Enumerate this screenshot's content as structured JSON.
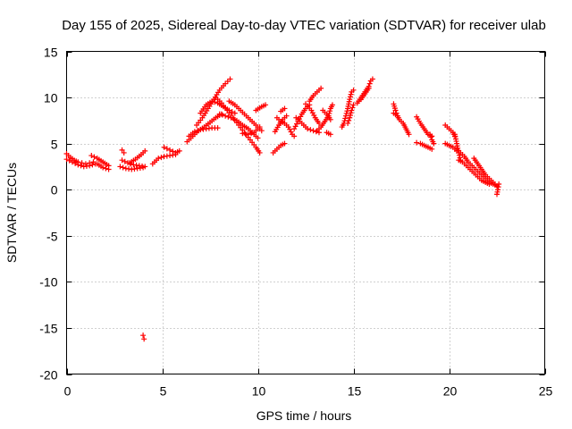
{
  "chart_data": {
    "type": "scatter",
    "title": "Day 155 of 2025, Sidereal Day-to-day VTEC variation (SDTVAR) for receiver ulab",
    "xlabel": "GPS time / hours",
    "ylabel": "SDTVAR / TECUs",
    "xlim": [
      0,
      25
    ],
    "ylim": [
      -20,
      15
    ],
    "xticks": [
      0,
      5,
      10,
      15,
      20,
      25
    ],
    "yticks": [
      -20,
      -15,
      -10,
      -5,
      0,
      5,
      10,
      15
    ],
    "xtick_labels": [
      "0",
      "5",
      "10",
      "15",
      "20",
      "25"
    ],
    "ytick_labels": [
      "-20",
      "-15",
      "-10",
      "-5",
      "0",
      "5",
      "10",
      "15"
    ],
    "grid": true,
    "marker": "+",
    "series": [
      {
        "name": "SDTVAR",
        "color": "#ff0000",
        "segments": [
          [
            [
              0.0,
              3.9
            ],
            [
              0.2,
              3.5
            ],
            [
              0.4,
              3.2
            ],
            [
              0.6,
              3.0
            ],
            [
              0.8,
              2.9
            ],
            [
              1.0,
              2.8
            ],
            [
              1.2,
              2.9
            ],
            [
              1.4,
              3.0
            ]
          ],
          [
            [
              0.0,
              3.3
            ],
            [
              0.3,
              3.0
            ],
            [
              0.6,
              2.7
            ],
            [
              0.9,
              2.5
            ],
            [
              1.2,
              2.6
            ],
            [
              1.5,
              2.8
            ]
          ],
          [
            [
              1.3,
              3.7
            ],
            [
              1.6,
              3.4
            ],
            [
              1.9,
              3.0
            ],
            [
              2.2,
              2.6
            ]
          ],
          [
            [
              1.6,
              2.8
            ],
            [
              1.9,
              2.4
            ],
            [
              2.2,
              2.2
            ]
          ],
          [
            [
              2.8,
              2.5
            ],
            [
              3.1,
              2.3
            ],
            [
              3.4,
              2.2
            ],
            [
              3.7,
              2.3
            ],
            [
              4.0,
              2.4
            ]
          ],
          [
            [
              2.9,
              3.2
            ],
            [
              3.2,
              2.9
            ],
            [
              3.5,
              2.7
            ],
            [
              3.8,
              2.6
            ],
            [
              4.1,
              2.5
            ]
          ],
          [
            [
              3.3,
              2.9
            ],
            [
              3.6,
              3.3
            ],
            [
              3.9,
              3.8
            ],
            [
              4.1,
              4.2
            ]
          ],
          [
            [
              2.9,
              4.3
            ],
            [
              3.0,
              4.0
            ]
          ],
          [
            [
              4.0,
              -15.8
            ],
            [
              4.05,
              -16.2
            ]
          ],
          [
            [
              4.5,
              2.8
            ],
            [
              4.6,
              3.0
            ],
            [
              4.7,
              3.2
            ]
          ],
          [
            [
              4.8,
              3.4
            ],
            [
              5.1,
              3.6
            ],
            [
              5.4,
              3.7
            ],
            [
              5.7,
              3.8
            ]
          ],
          [
            [
              5.1,
              4.6
            ],
            [
              5.4,
              4.3
            ],
            [
              5.7,
              4.0
            ],
            [
              5.9,
              4.2
            ]
          ],
          [
            [
              6.3,
              5.2
            ],
            [
              6.6,
              5.8
            ],
            [
              6.9,
              6.4
            ],
            [
              7.2,
              6.8
            ],
            [
              7.5,
              7.3
            ],
            [
              7.8,
              7.8
            ],
            [
              8.1,
              8.2
            ]
          ],
          [
            [
              6.4,
              5.8
            ],
            [
              6.7,
              6.3
            ],
            [
              7.0,
              6.5
            ],
            [
              7.3,
              6.6
            ],
            [
              7.6,
              6.7
            ],
            [
              7.9,
              6.7
            ]
          ],
          [
            [
              6.8,
              7.0
            ],
            [
              7.1,
              7.8
            ],
            [
              7.4,
              8.8
            ],
            [
              7.7,
              9.8
            ],
            [
              8.0,
              10.8
            ],
            [
              8.3,
              11.5
            ],
            [
              8.55,
              12.0
            ]
          ],
          [
            [
              7.0,
              8.3
            ],
            [
              7.3,
              9.2
            ],
            [
              7.6,
              9.6
            ],
            [
              7.9,
              9.4
            ],
            [
              8.2,
              9.0
            ],
            [
              8.5,
              8.6
            ],
            [
              8.8,
              8.3
            ]
          ],
          [
            [
              7.8,
              10.0
            ],
            [
              8.1,
              9.4
            ],
            [
              8.4,
              8.6
            ],
            [
              8.7,
              7.8
            ],
            [
              9.0,
              7.0
            ],
            [
              9.3,
              6.2
            ],
            [
              9.6,
              5.4
            ],
            [
              9.9,
              4.6
            ],
            [
              10.1,
              4.0
            ]
          ],
          [
            [
              8.0,
              8.2
            ],
            [
              8.3,
              8.0
            ],
            [
              8.6,
              7.8
            ],
            [
              8.9,
              7.5
            ],
            [
              9.2,
              7.0
            ],
            [
              9.5,
              6.6
            ],
            [
              9.8,
              6.0
            ],
            [
              10.0,
              5.6
            ]
          ],
          [
            [
              8.5,
              9.6
            ],
            [
              8.8,
              9.2
            ],
            [
              9.1,
              8.6
            ],
            [
              9.4,
              8.0
            ],
            [
              9.7,
              7.4
            ],
            [
              10.0,
              6.8
            ],
            [
              10.2,
              6.4
            ]
          ],
          [
            [
              9.2,
              6.1
            ],
            [
              9.5,
              6.0
            ],
            [
              9.8,
              6.2
            ],
            [
              10.1,
              6.8
            ]
          ],
          [
            [
              9.9,
              8.6
            ],
            [
              10.2,
              9.0
            ],
            [
              10.4,
              9.2
            ]
          ],
          [
            [
              10.8,
              4.0
            ],
            [
              11.0,
              4.4
            ],
            [
              11.2,
              4.8
            ],
            [
              11.4,
              5.0
            ]
          ],
          [
            [
              10.9,
              6.3
            ],
            [
              11.1,
              7.0
            ],
            [
              11.3,
              7.6
            ],
            [
              11.5,
              8.0
            ]
          ],
          [
            [
              11.0,
              7.8
            ],
            [
              11.2,
              7.4
            ],
            [
              11.4,
              7.2
            ],
            [
              11.6,
              6.8
            ],
            [
              11.8,
              6.0
            ],
            [
              11.9,
              5.8
            ]
          ],
          [
            [
              11.2,
              8.5
            ],
            [
              11.4,
              8.8
            ]
          ],
          [
            [
              11.9,
              6.6
            ],
            [
              12.1,
              7.4
            ],
            [
              12.3,
              8.2
            ],
            [
              12.5,
              8.8
            ],
            [
              12.7,
              9.2
            ]
          ],
          [
            [
              12.0,
              7.8
            ],
            [
              12.3,
              7.2
            ],
            [
              12.6,
              6.6
            ],
            [
              12.9,
              6.4
            ],
            [
              13.2,
              6.2
            ]
          ],
          [
            [
              12.5,
              9.3
            ],
            [
              12.8,
              8.6
            ],
            [
              13.0,
              7.8
            ],
            [
              13.2,
              7.2
            ]
          ],
          [
            [
              12.7,
              9.6
            ],
            [
              12.9,
              10.2
            ],
            [
              13.1,
              10.6
            ],
            [
              13.3,
              11.0
            ]
          ],
          [
            [
              13.1,
              6.4
            ],
            [
              13.3,
              6.8
            ],
            [
              13.5,
              7.4
            ],
            [
              13.7,
              8.0
            ],
            [
              13.8,
              8.8
            ],
            [
              13.9,
              9.2
            ]
          ],
          [
            [
              13.4,
              8.6
            ],
            [
              13.6,
              8.2
            ],
            [
              13.8,
              7.6
            ]
          ],
          [
            [
              13.6,
              6.2
            ],
            [
              13.8,
              6.0
            ]
          ],
          [
            [
              14.4,
              6.8
            ],
            [
              14.5,
              7.2
            ],
            [
              14.6,
              8.0
            ],
            [
              14.7,
              8.8
            ],
            [
              14.8,
              9.8
            ],
            [
              14.9,
              10.6
            ],
            [
              15.0,
              10.8
            ]
          ],
          [
            [
              14.7,
              7.2
            ],
            [
              14.8,
              7.8
            ],
            [
              14.9,
              8.6
            ],
            [
              15.0,
              9.2
            ]
          ],
          [
            [
              15.2,
              9.4
            ],
            [
              15.4,
              10.0
            ],
            [
              15.6,
              10.6
            ],
            [
              15.8,
              11.2
            ],
            [
              15.9,
              11.8
            ],
            [
              16.0,
              12.0
            ]
          ],
          [
            [
              15.4,
              9.8
            ],
            [
              15.6,
              10.4
            ],
            [
              15.8,
              11.0
            ]
          ],
          [
            [
              17.1,
              9.3
            ],
            [
              17.2,
              8.6
            ],
            [
              17.3,
              8.0
            ],
            [
              17.4,
              7.6
            ],
            [
              17.5,
              7.4
            ]
          ],
          [
            [
              17.6,
              7.2
            ],
            [
              17.7,
              6.8
            ],
            [
              17.8,
              6.4
            ],
            [
              17.9,
              6.0
            ]
          ],
          [
            [
              17.1,
              8.3
            ],
            [
              17.3,
              8.0
            ]
          ],
          [
            [
              18.3,
              7.9
            ],
            [
              18.5,
              7.2
            ],
            [
              18.7,
              6.6
            ],
            [
              18.9,
              6.0
            ],
            [
              19.1,
              5.8
            ]
          ],
          [
            [
              18.3,
              5.1
            ],
            [
              18.5,
              5.0
            ],
            [
              18.7,
              4.8
            ],
            [
              18.9,
              4.6
            ],
            [
              19.1,
              4.4
            ]
          ],
          [
            [
              19.0,
              6.0
            ],
            [
              19.1,
              5.4
            ],
            [
              19.2,
              5.0
            ]
          ],
          [
            [
              19.8,
              7.0
            ],
            [
              20.0,
              6.6
            ],
            [
              20.2,
              6.2
            ],
            [
              20.3,
              5.8
            ]
          ],
          [
            [
              19.8,
              5.0
            ],
            [
              20.0,
              4.8
            ],
            [
              20.2,
              4.6
            ],
            [
              20.4,
              4.2
            ]
          ],
          [
            [
              20.3,
              6.0
            ],
            [
              20.4,
              5.0
            ],
            [
              20.5,
              4.0
            ],
            [
              20.6,
              3.2
            ]
          ],
          [
            [
              20.4,
              4.4
            ],
            [
              20.6,
              4.0
            ],
            [
              20.8,
              3.6
            ],
            [
              21.0,
              3.0
            ],
            [
              21.2,
              2.6
            ],
            [
              21.4,
              2.2
            ],
            [
              21.6,
              1.8
            ],
            [
              21.8,
              1.4
            ],
            [
              22.0,
              1.0
            ],
            [
              22.2,
              0.7
            ],
            [
              22.4,
              0.5
            ]
          ],
          [
            [
              20.5,
              3.2
            ],
            [
              20.7,
              3.0
            ],
            [
              20.9,
              2.6
            ],
            [
              21.1,
              2.2
            ],
            [
              21.3,
              1.8
            ],
            [
              21.5,
              1.4
            ],
            [
              21.7,
              1.0
            ],
            [
              21.9,
              0.8
            ],
            [
              22.1,
              0.6
            ]
          ],
          [
            [
              21.3,
              3.4
            ],
            [
              21.5,
              2.8
            ],
            [
              21.7,
              2.2
            ],
            [
              21.9,
              1.6
            ],
            [
              22.1,
              1.2
            ],
            [
              22.3,
              0.8
            ],
            [
              22.5,
              0.4
            ]
          ],
          [
            [
              22.5,
              -0.5
            ],
            [
              22.55,
              0.0
            ],
            [
              22.6,
              0.6
            ]
          ]
        ]
      }
    ]
  }
}
